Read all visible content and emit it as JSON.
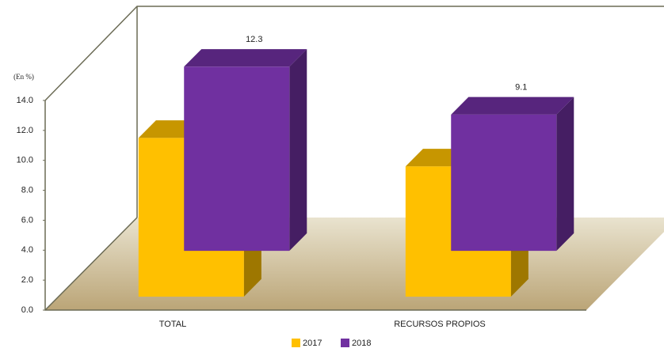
{
  "chart_data": {
    "type": "bar3d",
    "y_axis_label": "(En %)",
    "categories": [
      "TOTAL",
      "RECURSOS PROPIOS"
    ],
    "series": [
      {
        "name": "2017",
        "color": "#FFC000",
        "values": [
          10.6,
          8.7
        ]
      },
      {
        "name": "2018",
        "color": "#7030A0",
        "values": [
          12.3,
          9.1
        ]
      }
    ],
    "ylim": [
      0,
      14
    ],
    "yticks": [
      {
        "value": 0,
        "label": "0.0"
      },
      {
        "value": 2,
        "label": "2.0"
      },
      {
        "value": 4,
        "label": "4.0"
      },
      {
        "value": 6,
        "label": "6.0"
      },
      {
        "value": 8,
        "label": "8.0"
      },
      {
        "value": 10,
        "label": "10.0"
      },
      {
        "value": 12,
        "label": "12.0"
      },
      {
        "value": 14,
        "label": "14.0"
      }
    ],
    "legend": "bottom"
  }
}
